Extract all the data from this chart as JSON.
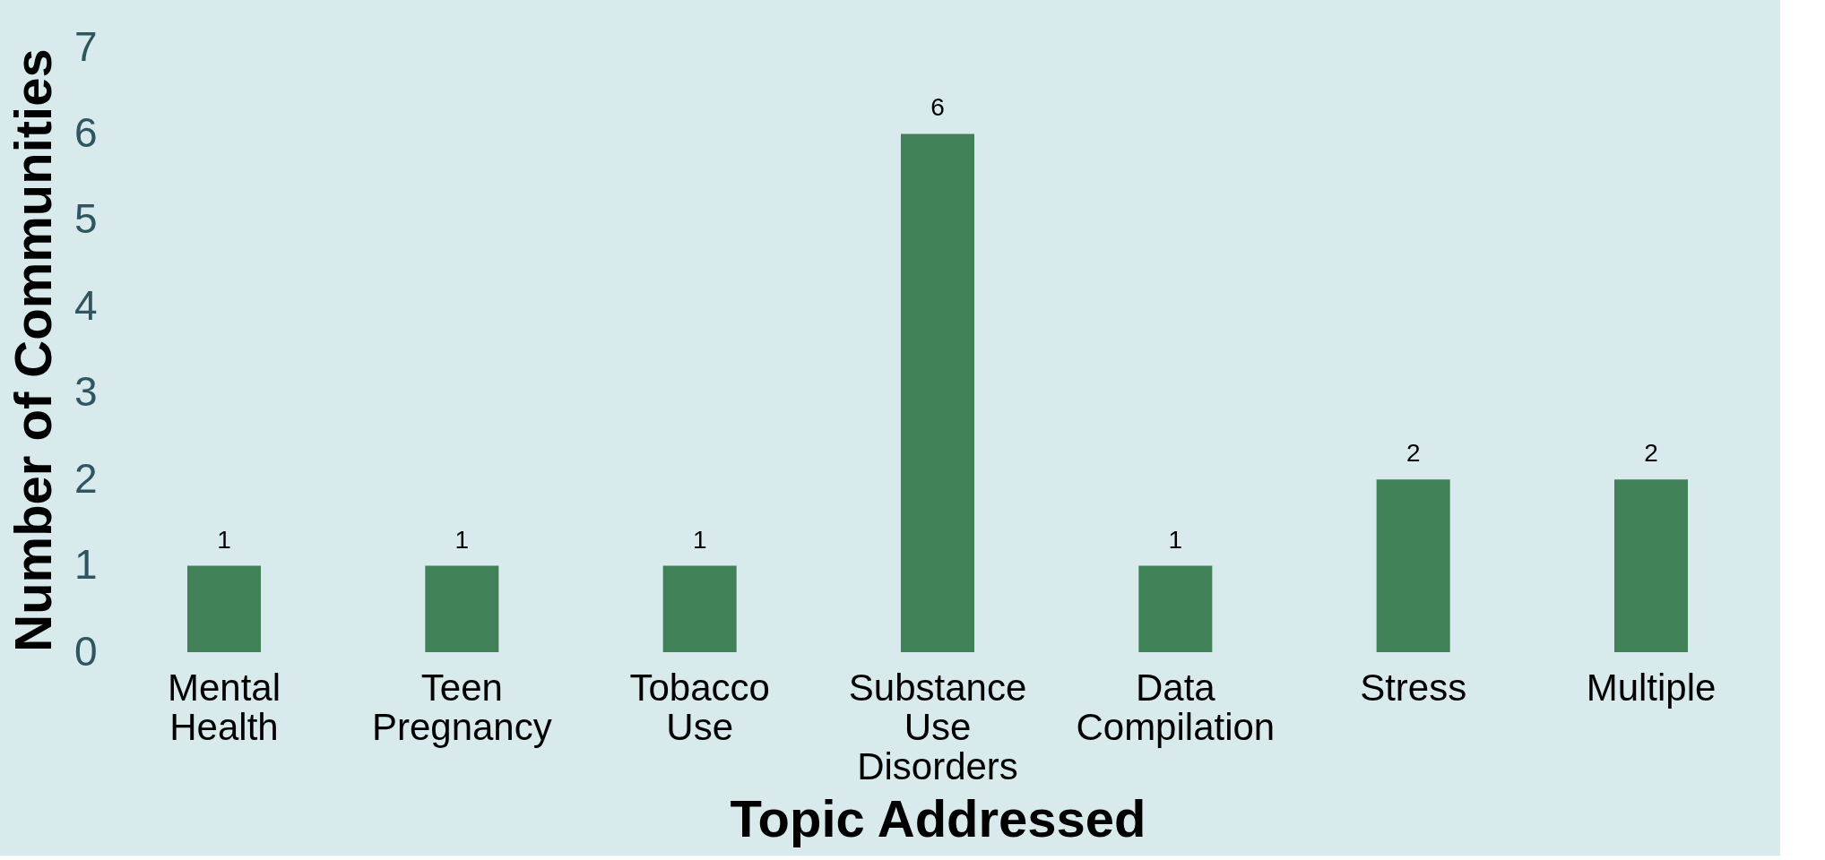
{
  "chart_data": {
    "type": "bar",
    "xlabel": "Topic Addressed",
    "ylabel": "Number of Communities",
    "categories": [
      "Mental Health",
      "Teen Pregnancy",
      "Tobacco Use",
      "Substance Use Disorders",
      "Data Compilation",
      "Stress",
      "Multiple"
    ],
    "values": [
      1,
      1,
      1,
      6,
      1,
      2,
      2
    ],
    "color": "#418157",
    "ylim": [
      0,
      7
    ],
    "yticks": [
      0,
      1,
      2,
      3,
      4,
      5,
      6,
      7
    ],
    "grid": false,
    "data_labels": true
  }
}
